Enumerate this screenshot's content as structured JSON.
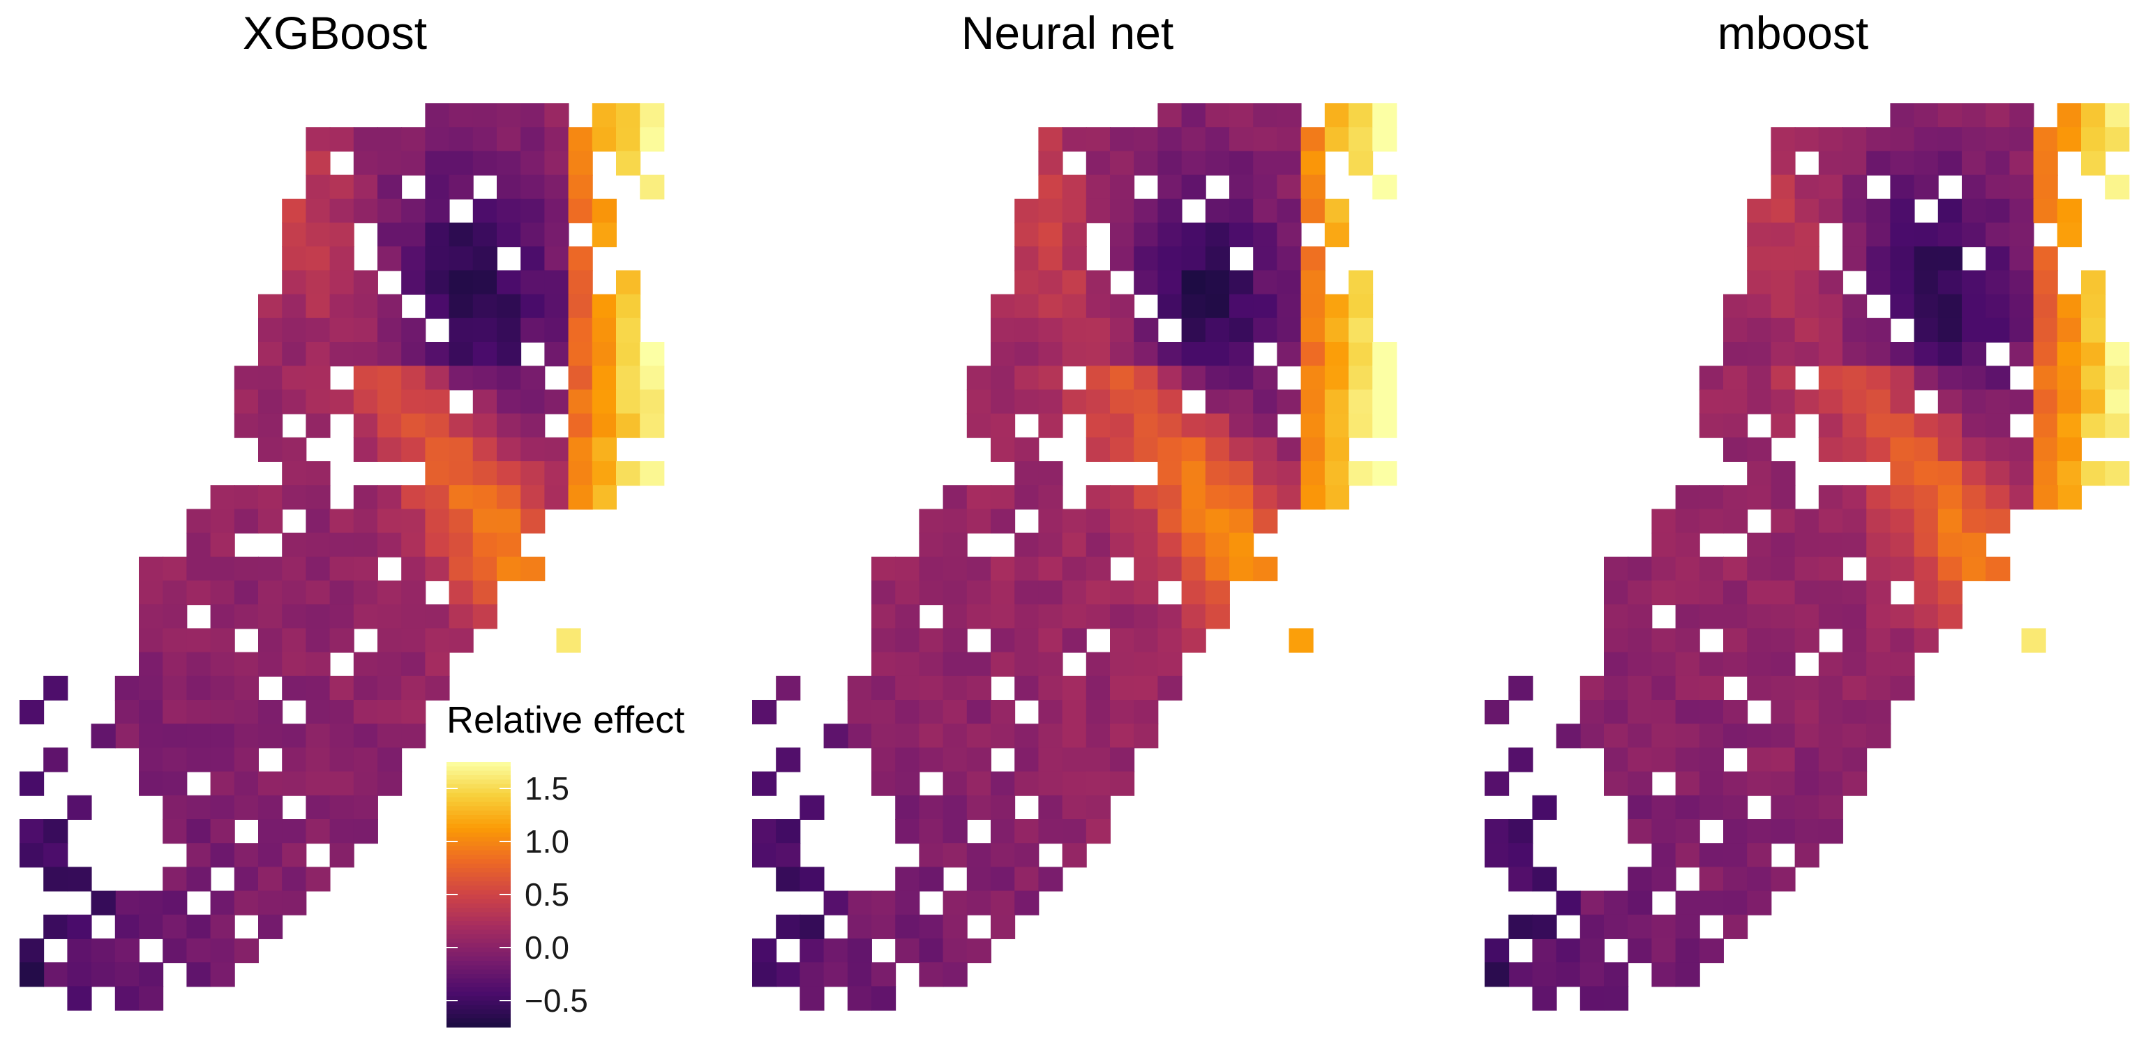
{
  "chart_data": [
    {
      "type": "heatmap",
      "title": "XGBoost",
      "colormap": "inferno",
      "value_range": [
        -0.75,
        1.75
      ],
      "grid_on": false,
      "legend_placement": "bottom-right",
      "map_variant": 0
    },
    {
      "type": "heatmap",
      "title": "Neural net",
      "colormap": "inferno",
      "value_range": [
        -0.75,
        1.75
      ],
      "grid_on": false,
      "map_variant": 1
    },
    {
      "type": "heatmap",
      "title": "mboost",
      "colormap": "inferno",
      "value_range": [
        -0.75,
        1.75
      ],
      "grid_on": false,
      "map_variant": 2
    }
  ],
  "legend": {
    "title": "Relative effect",
    "ticks": [
      {
        "value": 1.5,
        "label": "1.5"
      },
      {
        "value": 1.0,
        "label": "1.0"
      },
      {
        "value": 0.5,
        "label": "0.5"
      },
      {
        "value": 0.0,
        "label": "0.0"
      },
      {
        "value": -0.5,
        "label": "−0.5"
      }
    ],
    "colors": [
      "#1b0c41",
      "#4a0c6b",
      "#781c6d",
      "#a52c60",
      "#cf4446",
      "#ed6925",
      "#fb9b06",
      "#f7d13d",
      "#fcffa4"
    ]
  }
}
